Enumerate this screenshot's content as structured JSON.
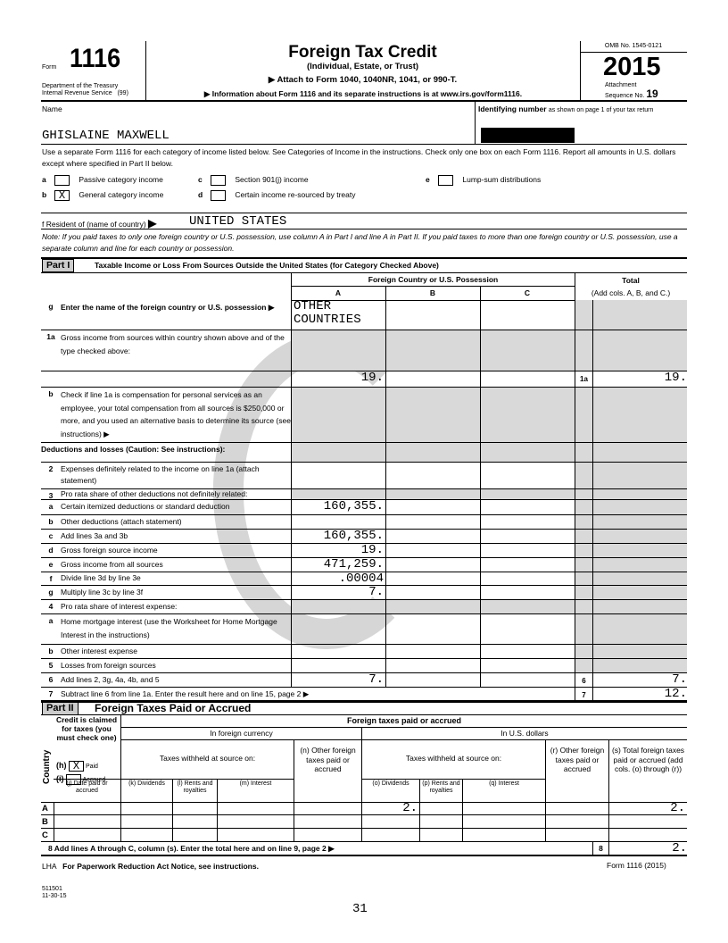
{
  "header": {
    "form_word": "Form",
    "form_number": "1116",
    "dept": "Department of the Treasury",
    "irs": "Internal Revenue Service",
    "irs_code": "(99)",
    "title": "Foreign Tax Credit",
    "subtitle": "(Individual, Estate, or Trust)",
    "attach": "Attach to Form 1040, 1040NR, 1041, or 990-T.",
    "info": "Information about Form 1116 and its separate instructions is at www.irs.gov/form1116.",
    "omb": "OMB No. 1545-0121",
    "year": "2015",
    "attachment": "Attachment",
    "sequence": "Sequence No.",
    "seq_no": "19"
  },
  "name_label": "Name",
  "name_value": "GHISLAINE MAXWELL",
  "id_label": "Identifying number",
  "id_note": "as shown on page 1 of your tax return",
  "instructions": "Use a separate Form 1116 for each category of income listed below. See Categories of Income in the instructions. Check only one box on each Form 1116. Report all amounts in U.S. dollars except where specified in Part II below.",
  "categories": [
    {
      "letter": "a",
      "label": "Passive category income",
      "checked": ""
    },
    {
      "letter": "b",
      "label": "General category income",
      "checked": "X"
    },
    {
      "letter": "c",
      "label": "Section 901(j) income",
      "checked": ""
    },
    {
      "letter": "d",
      "label": "Certain income re-sourced by treaty",
      "checked": ""
    },
    {
      "letter": "e",
      "label": "Lump-sum distributions",
      "checked": ""
    }
  ],
  "resident_label": "f Resident of (name of country)",
  "resident_value": "UNITED STATES",
  "note": "Note: If you paid taxes to only one foreign country or U.S. possession, use column A in Part I and line A in Part II. If you paid taxes to more than one foreign country or U.S. possession, use a separate column and line for each country or possession.",
  "part1": {
    "tag": "Part I",
    "title": "Taxable Income or Loss From Sources Outside the United States (for Category Checked Above)",
    "col_group": "Foreign Country or U.S. Possession",
    "cols": [
      "A",
      "B",
      "C"
    ],
    "total": "Total",
    "total_sub": "(Add cols. A, B, and C.)",
    "rows": [
      {
        "num": "g",
        "label": "Enter the name of the foreign country or U.S. possession ▶",
        "h": 34,
        "A": "OTHER COUNTRIES",
        "bold": true
      },
      {
        "num": "1a",
        "label": "Gross income from sources within country shown above and of the type checked above:",
        "h": 46,
        "shade": true
      },
      {
        "num": "",
        "label": "",
        "h": 18,
        "A": "19.",
        "ln": "1a",
        "T": "19."
      },
      {
        "num": "b",
        "label": "Check if line 1a is compensation for personal services as an employee, your total compensation from all sources is $250,000 or more, and you used an alternative basis to determine its source (see instructions) ▶",
        "h": 62,
        "shade": true
      },
      {
        "num": "",
        "label": "Deductions and losses (Caution: See instructions):",
        "h": 22,
        "shade": true,
        "bold": true
      },
      {
        "num": "2",
        "label": "Expenses definitely related to the income on line 1a (attach statement)",
        "h": 30
      },
      {
        "num": "3",
        "label": "Pro rata share of other deductions not definitely related:",
        "h": 12,
        "shade": true
      },
      {
        "num": "a",
        "label": "Certain itemized deductions or standard deduction",
        "h": 17,
        "A": "160,355."
      },
      {
        "num": "b",
        "label": "Other deductions (attach statement)",
        "h": 16
      },
      {
        "num": "c",
        "label": "Add lines 3a and 3b",
        "h": 16,
        "A": "160,355."
      },
      {
        "num": "d",
        "label": "Gross foreign source income",
        "h": 16,
        "A": "19."
      },
      {
        "num": "e",
        "label": "Gross income from all sources",
        "h": 16,
        "A": "471,259."
      },
      {
        "num": "f",
        "label": "Divide line 3d by line 3e",
        "h": 15,
        "A": ".00004"
      },
      {
        "num": "g",
        "label": "Multiply line 3c by line 3f",
        "h": 16,
        "A": "7."
      },
      {
        "num": "4",
        "label": "Pro rata share of interest expense:",
        "h": 16,
        "shade": true
      },
      {
        "num": "a",
        "label": "Home mortgage interest (use the Worksheet for Home Mortgage Interest in the instructions)",
        "h": 34
      },
      {
        "num": "b",
        "label": "Other interest expense",
        "h": 16
      },
      {
        "num": "5",
        "label": "Losses from foreign sources",
        "h": 16
      },
      {
        "num": "6",
        "label": "Add lines 2, 3g, 4a, 4b, and 5",
        "h": 16,
        "A": "7.",
        "ln": "6",
        "T": "7."
      }
    ],
    "line7": {
      "num": "7",
      "label": "Subtract line 6 from line 1a. Enter the result here and on line 15, page 2 ▶",
      "ln": "7",
      "T": "12."
    }
  },
  "part2": {
    "tag": "Part II",
    "title": "Foreign Taxes Paid or Accrued",
    "credit": "Credit is claimed for taxes (you must check one)",
    "country": "Country",
    "h": "(h)",
    "paid": "Paid",
    "paid_checked": "X",
    "i": "(i)",
    "accrued": "Accrued",
    "group": "Foreign taxes paid or accrued",
    "foreign_cur": "In foreign currency",
    "usd": "In U.S. dollars",
    "withheld": "Taxes withheld at source on:",
    "cols": [
      "(j) Date paid or accrued",
      "(k) Dividends",
      "(l) Rents and royalties",
      "(m) Interest",
      "(n) Other foreign taxes paid or accrued",
      "(o) Dividends",
      "(p) Rents and royalties",
      "(q) Interest",
      "(r) Other foreign taxes paid or accrued",
      "(s) Total foreign taxes paid or accrued (add cols. (o) through (r))"
    ],
    "rows": [
      {
        "label": "A",
        "o": "2.",
        "s": "2."
      },
      {
        "label": "B",
        "o": "",
        "s": ""
      },
      {
        "label": "C",
        "o": "",
        "s": ""
      }
    ],
    "line8": {
      "num": "8",
      "label": "Add lines A through C, column (s). Enter the total here and on line 9, page 2",
      "ln": "8",
      "value": "2."
    }
  },
  "footer": {
    "lha": "LHA",
    "notice": "For Paperwork Reduction Act Notice, see instructions.",
    "form_ref": "Form 1116 (2015)",
    "code1": "511501",
    "code2": "11-30-15",
    "page": "31"
  },
  "watermark": "COPY"
}
